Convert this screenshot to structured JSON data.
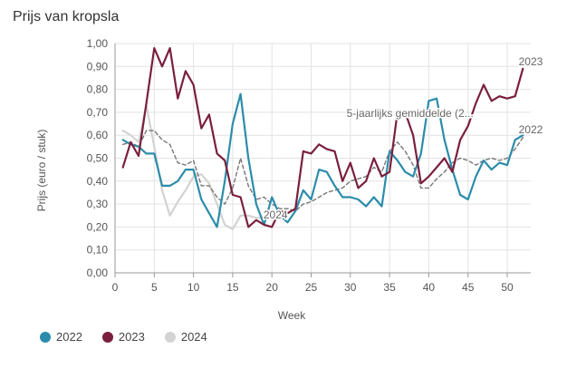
{
  "chart_data": {
    "type": "line",
    "title": "Prijs van kropsla",
    "xlabel": "Week",
    "ylabel": "Prijs (euro / stuk)",
    "xlim": [
      0,
      53
    ],
    "ylim": [
      0,
      1
    ],
    "x_ticks": [
      "0",
      "5",
      "10",
      "15",
      "20",
      "25",
      "30",
      "35",
      "40",
      "45",
      "50"
    ],
    "y_ticks": [
      "0,00",
      "0,10",
      "0,20",
      "0,30",
      "0,40",
      "0,50",
      "0,60",
      "0,70",
      "0,80",
      "0,90",
      "1,00"
    ],
    "grid": true,
    "legend_placement": "bottom-left",
    "series": [
      {
        "name": "2022",
        "color": "#2b8cab",
        "dashed": false,
        "inline_label": "2022",
        "x": [
          1,
          2,
          3,
          4,
          5,
          6,
          7,
          8,
          9,
          10,
          11,
          12,
          13,
          14,
          15,
          16,
          17,
          18,
          19,
          20,
          21,
          22,
          23,
          24,
          25,
          26,
          27,
          28,
          29,
          30,
          31,
          32,
          33,
          34,
          35,
          36,
          37,
          38,
          39,
          40,
          41,
          42,
          43,
          44,
          45,
          46,
          47,
          48,
          49,
          50,
          51,
          52
        ],
        "values": [
          0.58,
          0.56,
          0.55,
          0.52,
          0.52,
          0.38,
          0.38,
          0.4,
          0.45,
          0.45,
          0.32,
          0.26,
          0.2,
          0.4,
          0.65,
          0.78,
          0.5,
          0.3,
          0.21,
          0.33,
          0.25,
          0.22,
          0.27,
          0.36,
          0.32,
          0.45,
          0.44,
          0.38,
          0.33,
          0.33,
          0.32,
          0.29,
          0.33,
          0.29,
          0.53,
          0.49,
          0.44,
          0.42,
          0.52,
          0.75,
          0.76,
          0.58,
          0.45,
          0.34,
          0.32,
          0.42,
          0.49,
          0.45,
          0.48,
          0.47,
          0.58,
          0.6
        ]
      },
      {
        "name": "2023",
        "color": "#7a1f3d",
        "dashed": false,
        "inline_label": "2023",
        "x": [
          1,
          2,
          3,
          4,
          5,
          6,
          7,
          8,
          9,
          10,
          11,
          12,
          13,
          14,
          15,
          16,
          17,
          18,
          19,
          20,
          21,
          22,
          23,
          24,
          25,
          26,
          27,
          28,
          29,
          30,
          31,
          32,
          33,
          34,
          35,
          36,
          37,
          38,
          39,
          40,
          41,
          42,
          43,
          44,
          45,
          46,
          47,
          48,
          49,
          50,
          51,
          52
        ],
        "values": [
          0.46,
          0.57,
          0.51,
          0.74,
          0.98,
          0.9,
          0.98,
          0.76,
          0.88,
          0.82,
          0.63,
          0.69,
          0.52,
          0.49,
          0.34,
          0.33,
          0.2,
          0.23,
          0.21,
          0.2,
          0.27,
          0.26,
          0.28,
          0.53,
          0.52,
          0.56,
          0.54,
          0.53,
          0.4,
          0.48,
          0.37,
          0.4,
          0.5,
          0.42,
          0.44,
          0.7,
          0.7,
          0.6,
          0.39,
          0.42,
          0.46,
          0.5,
          0.44,
          0.58,
          0.64,
          0.74,
          0.82,
          0.75,
          0.77,
          0.76,
          0.77,
          0.89
        ]
      },
      {
        "name": "2024",
        "color": "#d3d3d3",
        "dashed": false,
        "inline_label": "2024",
        "x": [
          1,
          2,
          3,
          4,
          5,
          6,
          7,
          8,
          9,
          10,
          11,
          12,
          13,
          14,
          15,
          16,
          17,
          18,
          19,
          20
        ],
        "values": [
          0.62,
          0.6,
          0.57,
          0.73,
          0.55,
          0.36,
          0.25,
          0.31,
          0.36,
          0.42,
          0.43,
          0.39,
          0.3,
          0.21,
          0.19,
          0.25,
          0.25,
          0.24,
          0.24,
          0.25
        ]
      },
      {
        "name": "5-jaarlijks gemiddelde (2...",
        "color": "#777777",
        "dashed": true,
        "inline_label": "5-jaarlijks gemiddelde (2...",
        "x": [
          1,
          2,
          3,
          4,
          5,
          6,
          7,
          8,
          9,
          10,
          11,
          12,
          13,
          14,
          15,
          16,
          17,
          18,
          19,
          20,
          21,
          22,
          23,
          24,
          25,
          26,
          27,
          28,
          29,
          30,
          31,
          32,
          33,
          34,
          35,
          36,
          37,
          38,
          39,
          40,
          41,
          42,
          43,
          44,
          45,
          46,
          47,
          48,
          49,
          50,
          51,
          52
        ],
        "values": [
          0.56,
          0.57,
          0.55,
          0.62,
          0.62,
          0.58,
          0.56,
          0.48,
          0.47,
          0.49,
          0.38,
          0.38,
          0.33,
          0.3,
          0.37,
          0.5,
          0.38,
          0.32,
          0.33,
          0.3,
          0.28,
          0.28,
          0.27,
          0.3,
          0.31,
          0.33,
          0.35,
          0.36,
          0.37,
          0.4,
          0.41,
          0.42,
          0.46,
          0.44,
          0.53,
          0.57,
          0.53,
          0.47,
          0.37,
          0.37,
          0.41,
          0.44,
          0.48,
          0.5,
          0.49,
          0.47,
          0.49,
          0.5,
          0.49,
          0.5,
          0.54,
          0.59
        ]
      }
    ]
  }
}
